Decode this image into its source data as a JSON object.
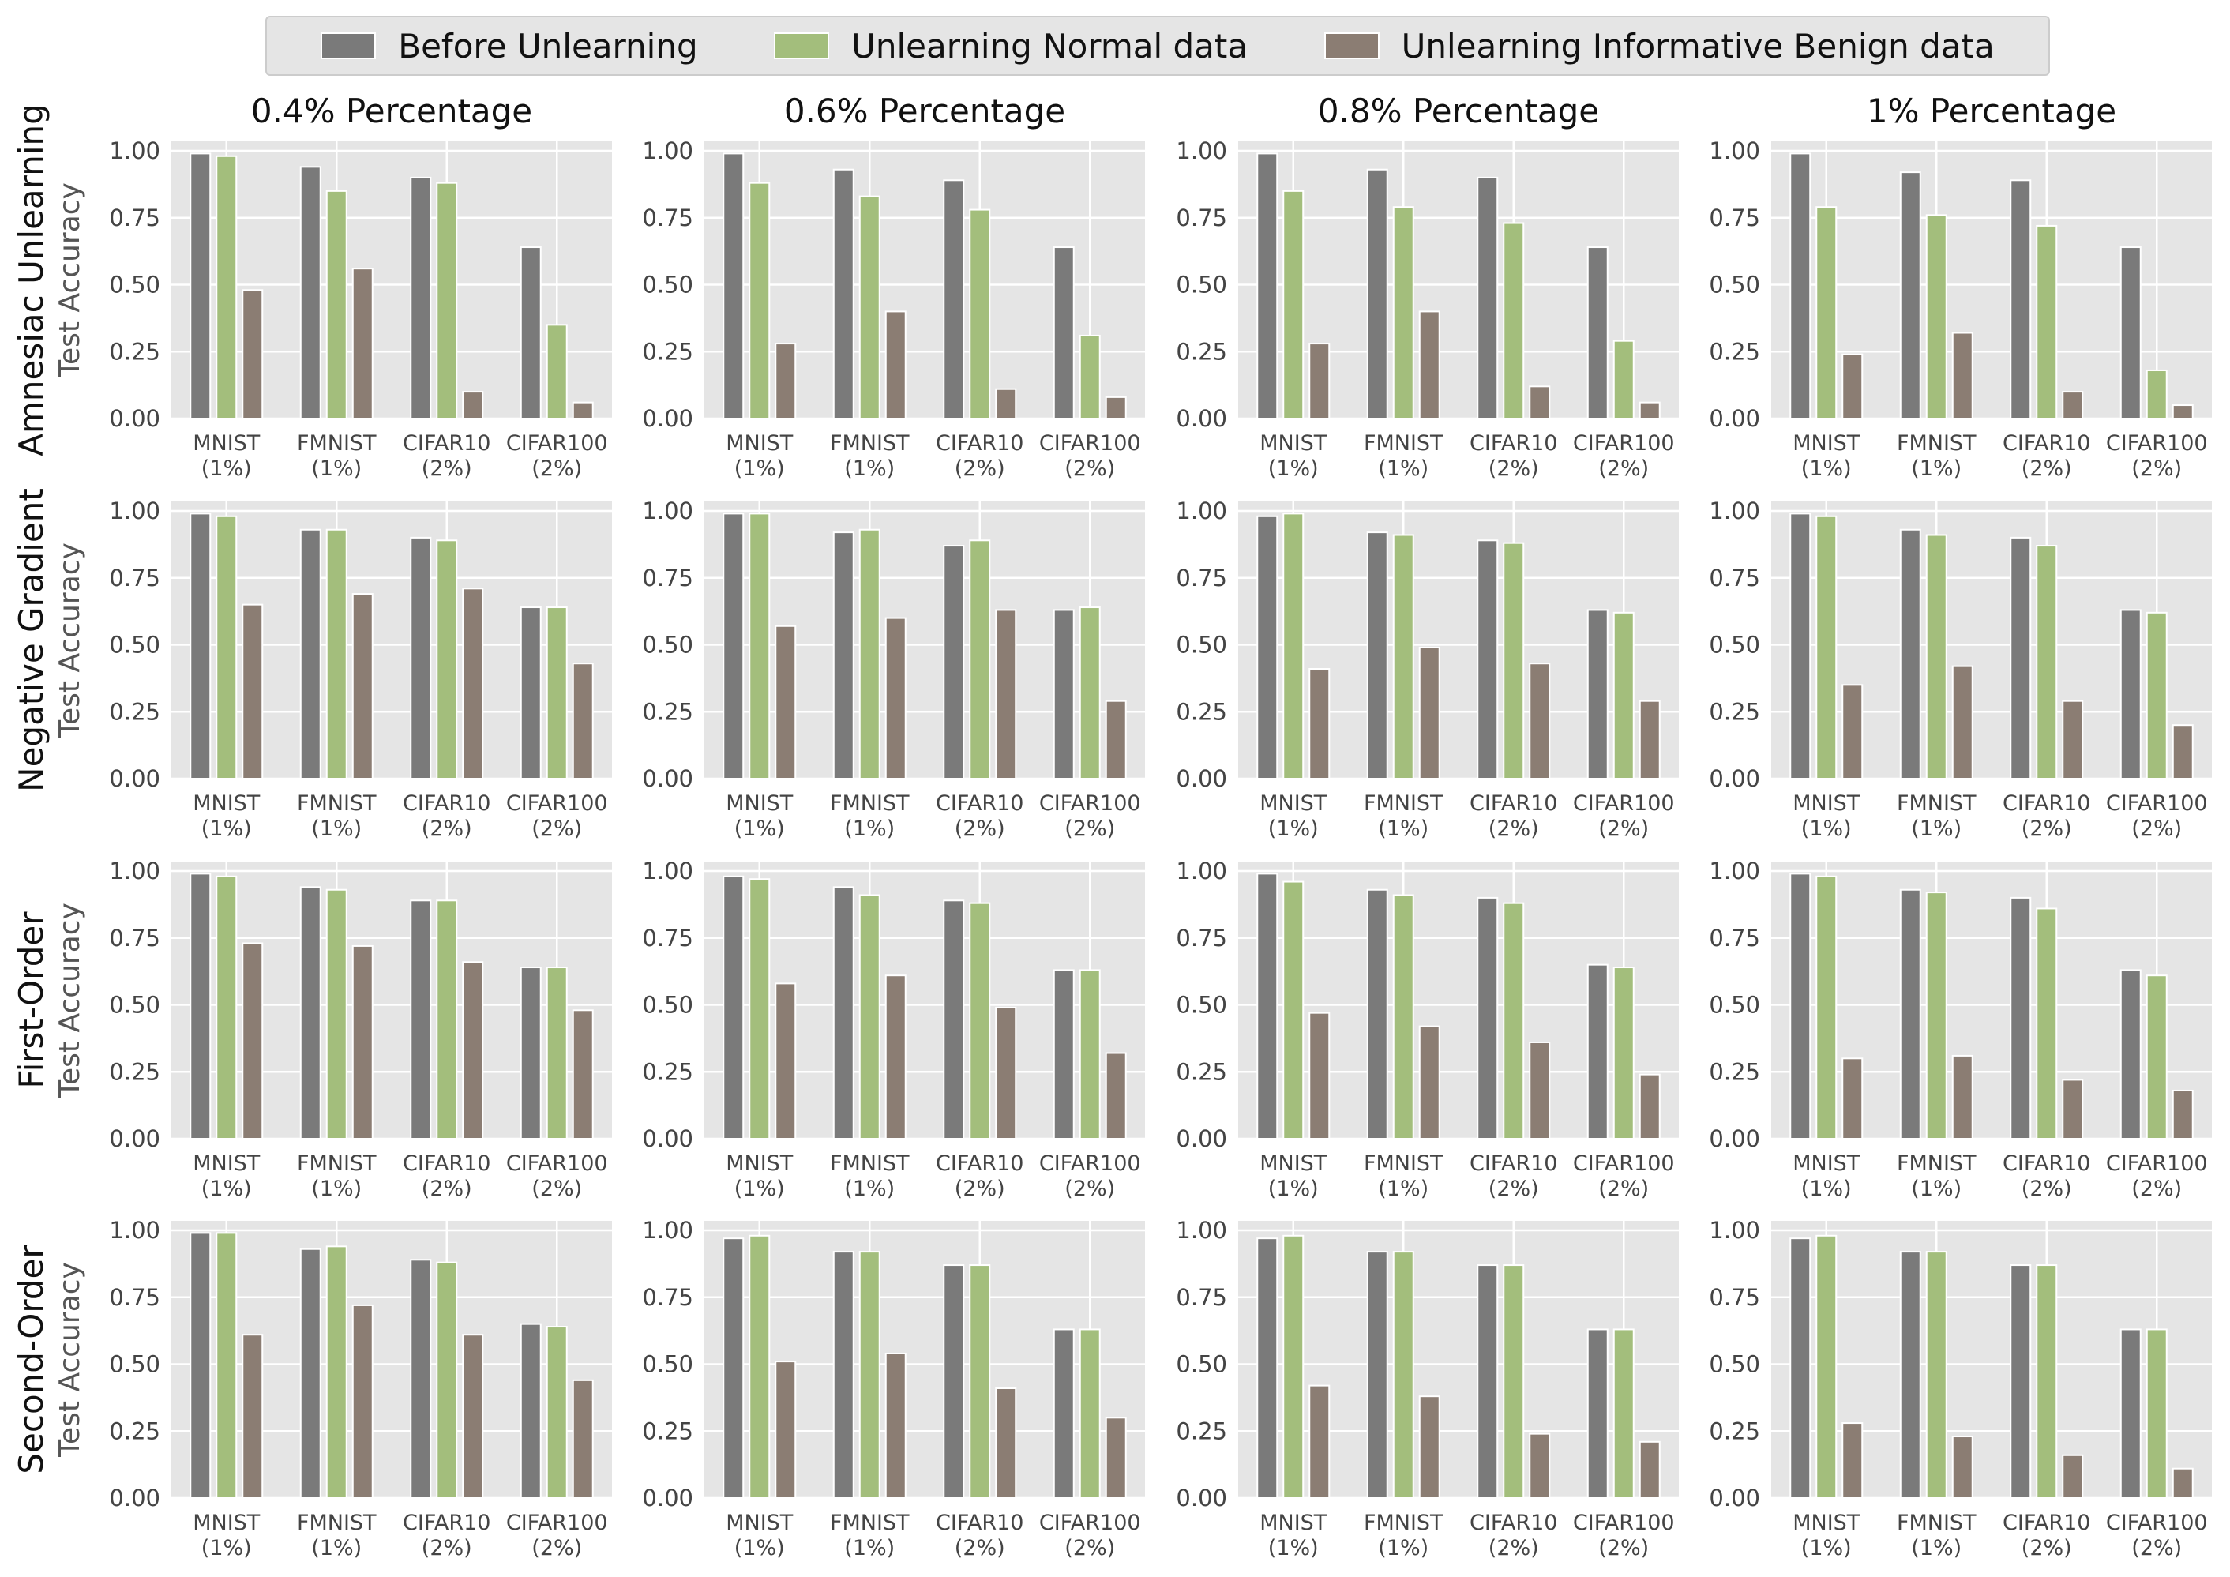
{
  "legend": [
    {
      "label": "Before Unlearning",
      "color": "#7a7a7a"
    },
    {
      "label": "Unlearning Normal data",
      "color": "#a3be7c"
    },
    {
      "label": "Unlearning Informative Benign data",
      "color": "#8b7d73"
    }
  ],
  "chart_data": {
    "type": "bar",
    "ylabel": "Test Accuracy",
    "ylim": [
      0,
      1.0
    ],
    "yticks": [
      "0.00",
      "0.25",
      "0.50",
      "0.75",
      "1.00"
    ],
    "categories": [
      [
        "MNIST",
        "(1%)"
      ],
      [
        "FMNIST",
        "(1%)"
      ],
      [
        "CIFAR10",
        "(2%)"
      ],
      [
        "CIFAR100",
        "(2%)"
      ]
    ],
    "series_names": [
      "Before Unlearning",
      "Unlearning Normal data",
      "Unlearning Informative Benign data"
    ],
    "columns": [
      "0.4% Percentage",
      "0.6% Percentage",
      "0.8% Percentage",
      "1% Percentage"
    ],
    "rows": [
      "Amnesiac Unlearning",
      "Negative Gradient",
      "First-Order",
      "Second-Order"
    ],
    "panels": [
      [
        {
          "values": [
            [
              0.99,
              0.94,
              0.9,
              0.64
            ],
            [
              0.98,
              0.85,
              0.88,
              0.35
            ],
            [
              0.48,
              0.56,
              0.1,
              0.06
            ]
          ]
        },
        {
          "values": [
            [
              0.99,
              0.93,
              0.89,
              0.64
            ],
            [
              0.88,
              0.83,
              0.78,
              0.31
            ],
            [
              0.28,
              0.4,
              0.11,
              0.08
            ]
          ]
        },
        {
          "values": [
            [
              0.99,
              0.93,
              0.9,
              0.64
            ],
            [
              0.85,
              0.79,
              0.73,
              0.29
            ],
            [
              0.28,
              0.4,
              0.12,
              0.06
            ]
          ]
        },
        {
          "values": [
            [
              0.99,
              0.92,
              0.89,
              0.64
            ],
            [
              0.79,
              0.76,
              0.72,
              0.18
            ],
            [
              0.24,
              0.32,
              0.1,
              0.05
            ]
          ]
        }
      ],
      [
        {
          "values": [
            [
              0.99,
              0.93,
              0.9,
              0.64
            ],
            [
              0.98,
              0.93,
              0.89,
              0.64
            ],
            [
              0.65,
              0.69,
              0.71,
              0.43
            ]
          ]
        },
        {
          "values": [
            [
              0.99,
              0.92,
              0.87,
              0.63
            ],
            [
              0.99,
              0.93,
              0.89,
              0.64
            ],
            [
              0.57,
              0.6,
              0.63,
              0.29
            ]
          ]
        },
        {
          "values": [
            [
              0.98,
              0.92,
              0.89,
              0.63
            ],
            [
              0.99,
              0.91,
              0.88,
              0.62
            ],
            [
              0.41,
              0.49,
              0.43,
              0.29
            ]
          ]
        },
        {
          "values": [
            [
              0.99,
              0.93,
              0.9,
              0.63
            ],
            [
              0.98,
              0.91,
              0.87,
              0.62
            ],
            [
              0.35,
              0.42,
              0.29,
              0.2
            ]
          ]
        }
      ],
      [
        {
          "values": [
            [
              0.99,
              0.94,
              0.89,
              0.64
            ],
            [
              0.98,
              0.93,
              0.89,
              0.64
            ],
            [
              0.73,
              0.72,
              0.66,
              0.48
            ]
          ]
        },
        {
          "values": [
            [
              0.98,
              0.94,
              0.89,
              0.63
            ],
            [
              0.97,
              0.91,
              0.88,
              0.63
            ],
            [
              0.58,
              0.61,
              0.49,
              0.32
            ]
          ]
        },
        {
          "values": [
            [
              0.99,
              0.93,
              0.9,
              0.65
            ],
            [
              0.96,
              0.91,
              0.88,
              0.64
            ],
            [
              0.47,
              0.42,
              0.36,
              0.24
            ]
          ]
        },
        {
          "values": [
            [
              0.99,
              0.93,
              0.9,
              0.63
            ],
            [
              0.98,
              0.92,
              0.86,
              0.61
            ],
            [
              0.3,
              0.31,
              0.22,
              0.18
            ]
          ]
        }
      ],
      [
        {
          "values": [
            [
              0.99,
              0.93,
              0.89,
              0.65
            ],
            [
              0.99,
              0.94,
              0.88,
              0.64
            ],
            [
              0.61,
              0.72,
              0.61,
              0.44
            ]
          ]
        },
        {
          "values": [
            [
              0.97,
              0.92,
              0.87,
              0.63
            ],
            [
              0.98,
              0.92,
              0.87,
              0.63
            ],
            [
              0.51,
              0.54,
              0.41,
              0.3
            ]
          ]
        },
        {
          "values": [
            [
              0.97,
              0.92,
              0.87,
              0.63
            ],
            [
              0.98,
              0.92,
              0.87,
              0.63
            ],
            [
              0.42,
              0.38,
              0.24,
              0.21
            ]
          ]
        },
        {
          "values": [
            [
              0.97,
              0.92,
              0.87,
              0.63
            ],
            [
              0.98,
              0.92,
              0.87,
              0.63
            ],
            [
              0.28,
              0.23,
              0.16,
              0.11
            ]
          ]
        }
      ]
    ]
  }
}
